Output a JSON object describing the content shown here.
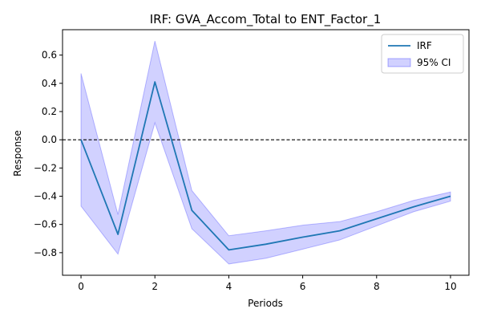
{
  "chart_data": {
    "type": "line",
    "title": "IRF: GVA_Accom_Total to ENT_Factor_1",
    "xlabel": "Periods",
    "ylabel": "Response",
    "x": [
      0,
      1,
      2,
      3,
      4,
      5,
      6,
      7,
      8,
      9,
      10
    ],
    "xlim": [
      -0.5,
      10.5
    ],
    "ylim": [
      -0.96,
      0.78
    ],
    "xticks": [
      0,
      2,
      4,
      6,
      8,
      10
    ],
    "yticks": [
      -0.8,
      -0.6,
      -0.4,
      -0.2,
      0.0,
      0.2,
      0.4,
      0.6
    ],
    "xtick_labels": [
      "0",
      "2",
      "4",
      "6",
      "8",
      "10"
    ],
    "ytick_labels": [
      "−0.8",
      "−0.6",
      "−0.4",
      "−0.2",
      "0.0",
      "0.2",
      "0.4",
      "0.6"
    ],
    "grid": false,
    "reference_line": {
      "y": 0,
      "style": "dashed",
      "color": "#000000"
    },
    "series": [
      {
        "name": "IRF",
        "kind": "line",
        "color": "#1f77b4",
        "values": [
          0.0,
          -0.67,
          0.41,
          -0.5,
          -0.78,
          -0.74,
          -0.69,
          -0.645,
          -0.56,
          -0.475,
          -0.4
        ]
      },
      {
        "name": "95% CI",
        "kind": "band",
        "fill": "#0000ff",
        "fill_opacity": 0.18,
        "lower": [
          -0.47,
          -0.81,
          0.12,
          -0.63,
          -0.88,
          -0.84,
          -0.775,
          -0.71,
          -0.61,
          -0.51,
          -0.435
        ],
        "upper": [
          0.47,
          -0.53,
          0.7,
          -0.36,
          -0.68,
          -0.645,
          -0.605,
          -0.58,
          -0.51,
          -0.43,
          -0.37
        ]
      }
    ],
    "legend": {
      "position": "top-right",
      "entries": [
        {
          "label": "IRF",
          "marker": "line",
          "color": "#1f77b4"
        },
        {
          "label": "95% CI",
          "marker": "patch",
          "color": "#0000ff"
        }
      ]
    }
  }
}
